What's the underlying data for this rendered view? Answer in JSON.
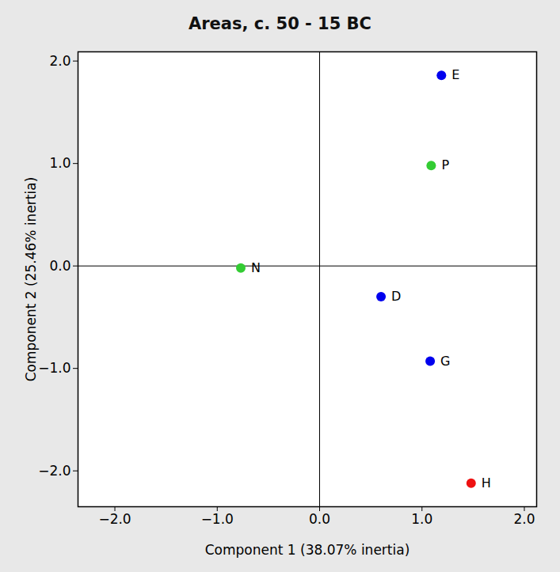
{
  "chart_data": {
    "type": "scatter",
    "title": "Areas, c. 50 - 15 BC",
    "x_label": "Component 1 (38.07% inertia)",
    "y_label": "Component 2 (25.46% inertia)",
    "labels": [
      "E",
      "P",
      "N",
      "D",
      "G",
      "H"
    ],
    "x": [
      1.19,
      1.09,
      -0.77,
      0.6,
      1.08,
      1.48
    ],
    "values": [
      1.86,
      0.98,
      -0.02,
      -0.3,
      -0.93,
      -2.12
    ],
    "colors": [
      "#0000ee",
      "#33cc33",
      "#33cc33",
      "#0000ee",
      "#0000ee",
      "#ee1111"
    ],
    "xlim": [
      -2.36,
      2.12
    ],
    "ylim": [
      -2.35,
      2.09
    ],
    "xticks": [
      -2,
      -1,
      0,
      1,
      2
    ],
    "yticks": [
      -2,
      -1,
      0,
      1,
      2
    ],
    "marker": "circle",
    "grid": false
  }
}
